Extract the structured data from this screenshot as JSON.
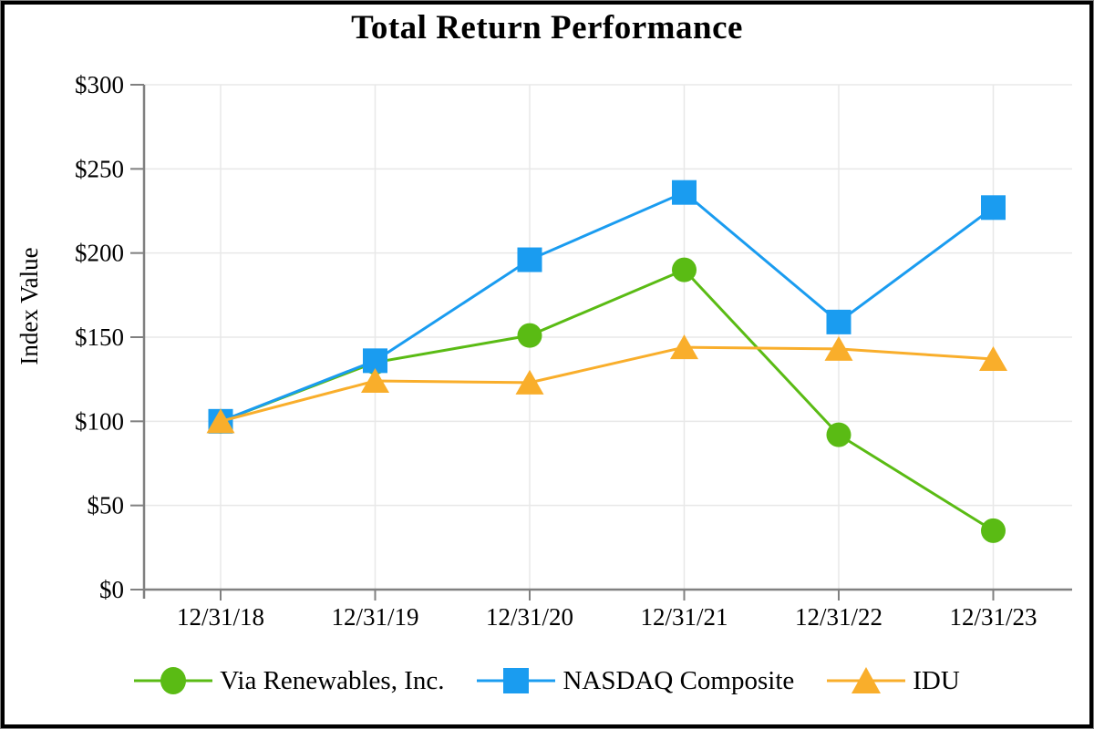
{
  "title": "Total Return Performance",
  "y_axis": {
    "label": "Index Value",
    "tick_labels": [
      "$0",
      "$50",
      "$100",
      "$150",
      "$200",
      "$250",
      "$300"
    ],
    "min": 0,
    "max": 300,
    "step": 50,
    "value_prefix": "$"
  },
  "x_axis": {
    "tick_labels": [
      "12/31/18",
      "12/31/19",
      "12/31/20",
      "12/31/21",
      "12/31/22",
      "12/31/23"
    ]
  },
  "legend": {
    "position": "bottom",
    "entries": [
      "Via Renewables, Inc.",
      "NASDAQ Composite",
      "IDU"
    ]
  },
  "colors": {
    "via_renewables": "#5ABB14",
    "nasdaq_composite": "#1A9CF0",
    "idu": "#F9AE2B",
    "gridline": "#E8E8E8",
    "axis": "#808080",
    "text": "#000000"
  },
  "chart_data": {
    "type": "line",
    "title": "Total Return Performance",
    "xlabel": "",
    "ylabel": "Index Value",
    "ylim": [
      0,
      300
    ],
    "y_step": 50,
    "grid": true,
    "legend_position": "bottom",
    "categories": [
      "12/31/18",
      "12/31/19",
      "12/31/20",
      "12/31/21",
      "12/31/22",
      "12/31/23"
    ],
    "series": [
      {
        "name": "Via Renewables, Inc.",
        "marker": "circle",
        "color": "#5ABB14",
        "values": [
          100,
          135,
          151,
          190,
          92,
          35
        ]
      },
      {
        "name": "NASDAQ Composite",
        "marker": "square",
        "color": "#1A9CF0",
        "values": [
          100,
          136,
          196,
          236,
          159,
          227
        ]
      },
      {
        "name": "IDU",
        "marker": "triangle",
        "color": "#F9AE2B",
        "values": [
          100,
          124,
          123,
          144,
          143,
          137
        ]
      }
    ]
  }
}
